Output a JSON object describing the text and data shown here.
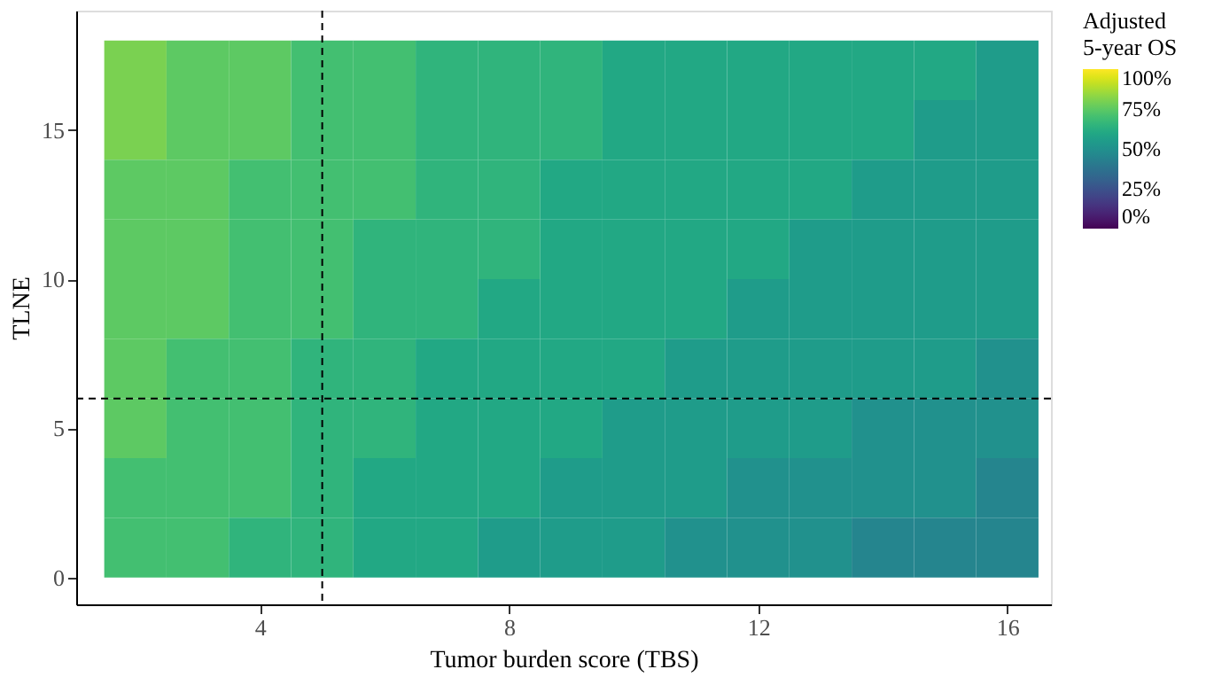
{
  "chart_data": {
    "type": "heatmap",
    "xlabel": "Tumor burden score (TBS)",
    "ylabel": "TLNE",
    "legend_title": "Adjusted\n5-year OS",
    "x": [
      2,
      3,
      4,
      5,
      6,
      7,
      8,
      9,
      10,
      11,
      12,
      13,
      14,
      15,
      16
    ],
    "y": [
      17,
      15,
      13,
      11,
      9,
      7,
      5,
      3,
      1
    ],
    "cells": [
      [
        80,
        75,
        75,
        70,
        70,
        65,
        65,
        65,
        60,
        60,
        60,
        60,
        60,
        60,
        55
      ],
      [
        80,
        75,
        75,
        70,
        70,
        65,
        65,
        65,
        60,
        60,
        60,
        60,
        60,
        55,
        55
      ],
      [
        75,
        75,
        70,
        70,
        70,
        65,
        65,
        60,
        60,
        60,
        60,
        60,
        55,
        55,
        55
      ],
      [
        75,
        75,
        70,
        70,
        65,
        65,
        65,
        60,
        60,
        60,
        60,
        55,
        55,
        55,
        55
      ],
      [
        75,
        75,
        70,
        70,
        65,
        65,
        60,
        60,
        60,
        60,
        55,
        55,
        55,
        55,
        55
      ],
      [
        75,
        70,
        70,
        65,
        65,
        60,
        60,
        60,
        60,
        55,
        55,
        55,
        55,
        55,
        50
      ],
      [
        75,
        70,
        70,
        65,
        65,
        60,
        60,
        60,
        55,
        55,
        55,
        55,
        50,
        50,
        50
      ],
      [
        70,
        70,
        70,
        65,
        60,
        60,
        60,
        55,
        55,
        55,
        50,
        50,
        50,
        50,
        45
      ],
      [
        70,
        70,
        65,
        65,
        60,
        60,
        55,
        55,
        55,
        50,
        50,
        50,
        45,
        45,
        45
      ]
    ],
    "xlim": [
      1.05,
      16.7
    ],
    "ylim": [
      -0.9,
      19
    ],
    "xticks": [
      4,
      8,
      12,
      16
    ],
    "yticks": [
      0,
      5,
      10,
      15
    ],
    "clim": [
      0,
      100
    ],
    "cticks": [
      {
        "value": 0,
        "label": "0%"
      },
      {
        "value": 25,
        "label": "25%"
      },
      {
        "value": 50,
        "label": "50%"
      },
      {
        "value": 75,
        "label": "75%"
      },
      {
        "value": 100,
        "label": "100%"
      }
    ],
    "ref_lines": [
      {
        "axis": "x",
        "value": 5,
        "color": "#000000",
        "line_style": "dashed"
      },
      {
        "axis": "y",
        "value": 6,
        "color": "#000000",
        "line_style": "dashed"
      }
    ],
    "grid": false
  }
}
